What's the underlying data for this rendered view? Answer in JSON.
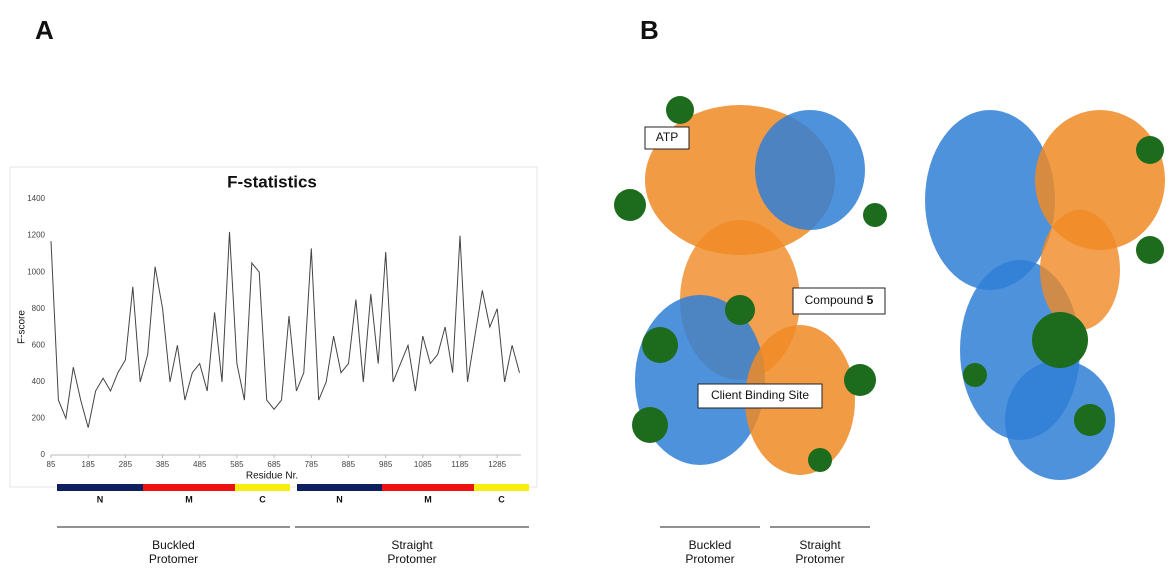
{
  "panel_a": {
    "label": "A",
    "domains": [
      {
        "label": "N",
        "color": "#0d1f5c"
      },
      {
        "label": "M",
        "color": "#ee1111"
      },
      {
        "label": "C",
        "color": "#f7ee10"
      },
      {
        "label": "N",
        "color": "#0d1f5c"
      },
      {
        "label": "M",
        "color": "#ee1111"
      },
      {
        "label": "C",
        "color": "#f7ee10"
      }
    ],
    "groups": [
      {
        "line1": "Buckled",
        "line2": "Protomer"
      },
      {
        "line1": "Straight",
        "line2": "Protomer"
      }
    ]
  },
  "chart_data": {
    "type": "line",
    "title": "F-statistics",
    "x_label": "Residue Nr.",
    "y_label": "F-score",
    "color": "#444444",
    "x": [
      85,
      105,
      125,
      145,
      165,
      185,
      205,
      225,
      245,
      265,
      285,
      305,
      325,
      345,
      365,
      385,
      405,
      425,
      445,
      465,
      485,
      505,
      525,
      545,
      565,
      585,
      605,
      625,
      645,
      665,
      685,
      705,
      725,
      745,
      765,
      785,
      805,
      825,
      845,
      865,
      885,
      905,
      925,
      945,
      965,
      985,
      1005,
      1025,
      1045,
      1065,
      1085,
      1105,
      1125,
      1145,
      1165,
      1185,
      1205,
      1225,
      1245,
      1265,
      1285,
      1305,
      1325,
      1345
    ],
    "values": [
      1170,
      300,
      200,
      480,
      300,
      150,
      350,
      420,
      350,
      450,
      520,
      920,
      400,
      550,
      1030,
      800,
      400,
      600,
      300,
      450,
      500,
      350,
      780,
      400,
      1220,
      500,
      300,
      1050,
      1000,
      300,
      250,
      300,
      760,
      350,
      450,
      1130,
      300,
      400,
      650,
      450,
      500,
      850,
      400,
      880,
      500,
      1110,
      400,
      500,
      600,
      350,
      650,
      500,
      550,
      700,
      450,
      1200,
      400,
      650,
      900,
      700,
      800,
      400,
      600,
      450
    ],
    "xlim": [
      85,
      1349
    ],
    "xticks": [
      85,
      185,
      285,
      385,
      485,
      585,
      685,
      785,
      885,
      985,
      1085,
      1185,
      1285
    ],
    "ylim": [
      0,
      1400
    ],
    "yticks": [
      0,
      200,
      400,
      600,
      800,
      1000,
      1200,
      1400
    ],
    "grid": false
  },
  "panel_b": {
    "label": "B",
    "atp": "ATP",
    "compound": "Compound ",
    "compound_number": "5",
    "client_site": "Client Binding Site",
    "groups": [
      {
        "line1": "Buckled",
        "line2": "Protomer"
      },
      {
        "line1": "Straight",
        "line2": "Protomer"
      }
    ]
  }
}
